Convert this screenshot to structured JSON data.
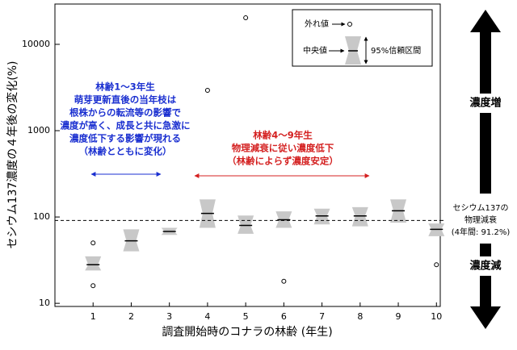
{
  "chart_data": {
    "type": "notched_box",
    "y_label": "セシウム137濃度の４年後の変化(%)",
    "x_label": "調査開始時のコナラの林齢 (年生)",
    "categories": [
      "1",
      "2",
      "3",
      "4",
      "5",
      "6",
      "7",
      "8",
      "9",
      "10"
    ],
    "median": [
      28,
      53,
      68,
      110,
      80,
      93,
      103,
      103,
      118,
      72
    ],
    "ci_low": [
      24,
      40,
      62,
      75,
      64,
      75,
      82,
      78,
      86,
      60
    ],
    "ci_high": [
      35,
      72,
      75,
      160,
      104,
      116,
      125,
      130,
      160,
      84
    ],
    "outliers": [
      {
        "category": 0,
        "value": 50
      },
      {
        "category": 0,
        "value": 16
      },
      {
        "category": 3,
        "value": 2930
      },
      {
        "category": 4,
        "value": 20300
      },
      {
        "category": 5,
        "value": 18
      },
      {
        "category": 9,
        "value": 28
      }
    ],
    "box_color": "#c8c8c8",
    "log_scale": true,
    "ylim": [
      9.2,
      29300
    ],
    "yticks": [
      10,
      100,
      1000,
      10000
    ],
    "reference": {
      "value": 91.2,
      "label": [
        "セシウム137の",
        "物理減衰",
        "(4年間: 91.2%)"
      ]
    },
    "legend": {
      "outlier": "外れ値",
      "median": "中央値",
      "interval": "95%信頼区間"
    },
    "annotations": [
      {
        "lines": [
          "林齢1～3年生",
          "萌芽更新直後の当年枝は",
          "根株からの転流等の影響で",
          "濃度が高く、成長と共に急激に",
          "濃度低下する影響が現れる",
          "（林齢とともに変化）"
        ],
        "color": "#1a2fd0"
      },
      {
        "lines": [
          "林齢4～9年生",
          "物理減衰に従い濃度低下",
          "（林齢によらず濃度安定）"
        ],
        "color": "#d42020"
      }
    ],
    "arrows": {
      "up": "濃度増",
      "down": "濃度減"
    }
  }
}
